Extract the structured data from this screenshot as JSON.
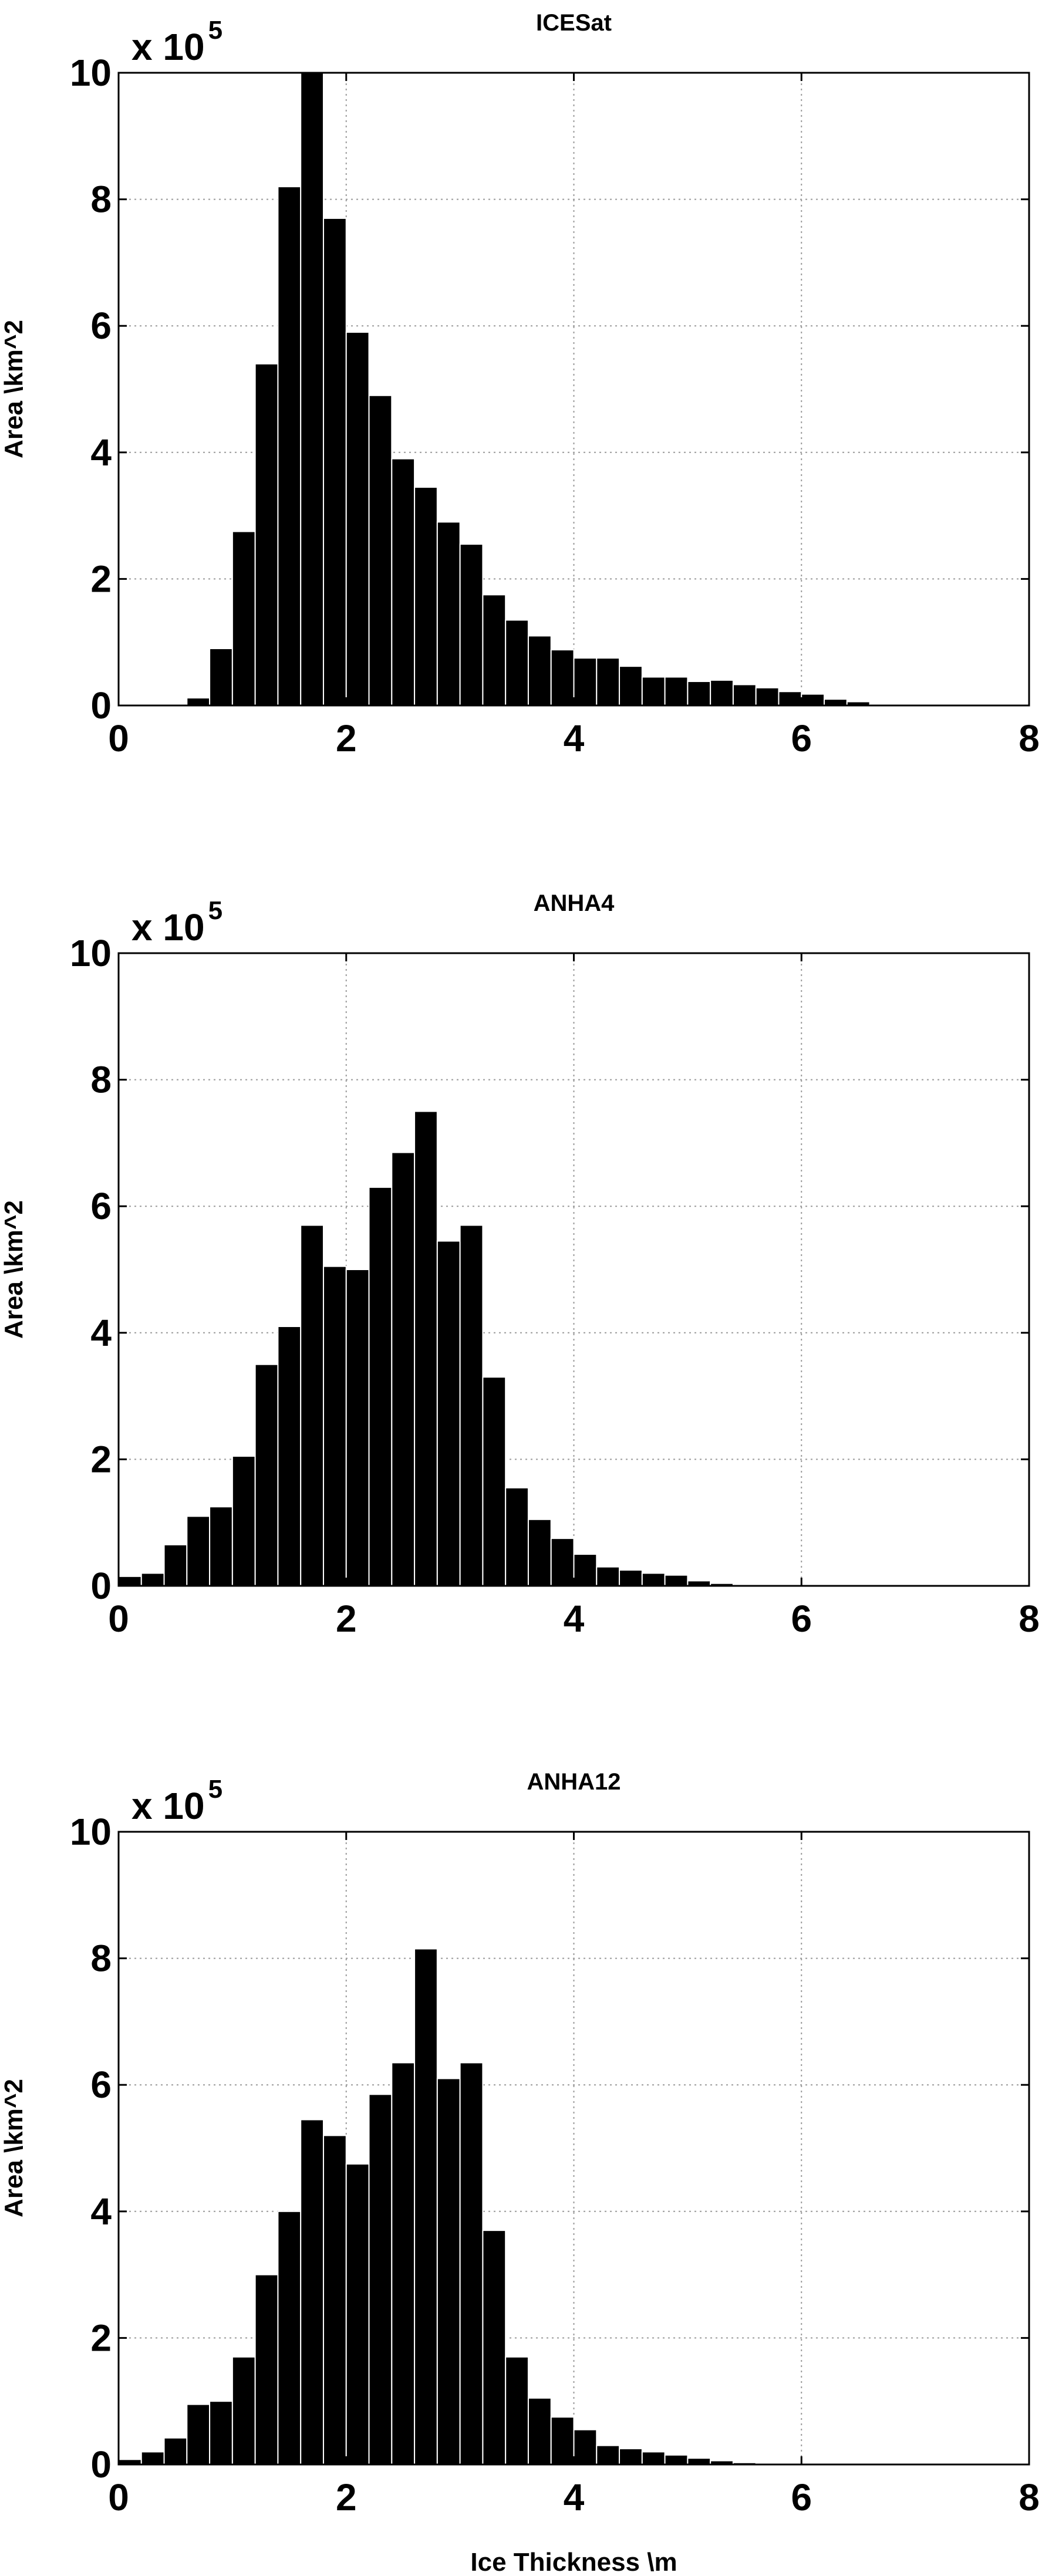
{
  "colors": {
    "bar": "#000000",
    "bar_edge": "#ffffff",
    "grid": "#9a9a9a",
    "background": "#ffffff"
  },
  "chart_data": [
    {
      "type": "bar",
      "title": "ICESat",
      "xlabel": "",
      "ylabel": "Area \\km^2",
      "y_multiplier": {
        "prefix": "x 10",
        "exponent": "5"
      },
      "xlim": [
        0,
        8
      ],
      "ylim": [
        0,
        10
      ],
      "xticks": [
        0,
        2,
        4,
        6,
        8
      ],
      "yticks": [
        0,
        2,
        4,
        6,
        8,
        10
      ],
      "grid": true,
      "bin_width": 0.2,
      "bin_starts": [
        0,
        0.2,
        0.4,
        0.6,
        0.8,
        1.0,
        1.2,
        1.4,
        1.6,
        1.8,
        2.0,
        2.2,
        2.4,
        2.6,
        2.8,
        3.0,
        3.2,
        3.4,
        3.6,
        3.8,
        4.0,
        4.2,
        4.4,
        4.6,
        4.8,
        5.0,
        5.2,
        5.4,
        5.6,
        5.8,
        6.0,
        6.2,
        6.4,
        6.6,
        6.8,
        7.0,
        7.2,
        7.4,
        7.6,
        7.8
      ],
      "values": [
        0,
        0,
        0,
        0.12,
        0.9,
        2.75,
        5.4,
        8.2,
        10.0,
        7.7,
        5.9,
        4.9,
        3.9,
        3.45,
        2.9,
        2.55,
        1.75,
        1.35,
        1.1,
        0.88,
        0.75,
        0.75,
        0.62,
        0.45,
        0.45,
        0.38,
        0.4,
        0.33,
        0.28,
        0.22,
        0.18,
        0.1,
        0.06,
        0.02,
        0,
        0,
        0,
        0,
        0,
        0
      ]
    },
    {
      "type": "bar",
      "title": "ANHA4",
      "xlabel": "",
      "ylabel": "Area \\km^2",
      "y_multiplier": {
        "prefix": "x 10",
        "exponent": "5"
      },
      "xlim": [
        0,
        8
      ],
      "ylim": [
        0,
        10
      ],
      "xticks": [
        0,
        2,
        4,
        6,
        8
      ],
      "yticks": [
        0,
        2,
        4,
        6,
        8,
        10
      ],
      "grid": true,
      "bin_width": 0.2,
      "bin_starts": [
        0,
        0.2,
        0.4,
        0.6,
        0.8,
        1.0,
        1.2,
        1.4,
        1.6,
        1.8,
        2.0,
        2.2,
        2.4,
        2.6,
        2.8,
        3.0,
        3.2,
        3.4,
        3.6,
        3.8,
        4.0,
        4.2,
        4.4,
        4.6,
        4.8,
        5.0,
        5.2,
        5.4,
        5.6,
        5.8,
        6.0,
        6.2,
        6.4,
        6.6,
        6.8,
        7.0,
        7.2,
        7.4,
        7.6,
        7.8
      ],
      "values": [
        0.15,
        0.2,
        0.65,
        1.1,
        1.25,
        2.05,
        3.5,
        4.1,
        5.7,
        5.05,
        5.0,
        6.3,
        6.85,
        7.5,
        5.45,
        5.7,
        3.3,
        1.55,
        1.05,
        0.75,
        0.5,
        0.3,
        0.25,
        0.2,
        0.17,
        0.08,
        0.04,
        0.02,
        0.01,
        0,
        0,
        0,
        0,
        0,
        0,
        0,
        0,
        0,
        0,
        0
      ]
    },
    {
      "type": "bar",
      "title": "ANHA12",
      "xlabel": "Ice Thickness \\m",
      "ylabel": "Area \\km^2",
      "y_multiplier": {
        "prefix": "x 10",
        "exponent": "5"
      },
      "xlim": [
        0,
        8
      ],
      "ylim": [
        0,
        10
      ],
      "xticks": [
        0,
        2,
        4,
        6,
        8
      ],
      "yticks": [
        0,
        2,
        4,
        6,
        8,
        10
      ],
      "grid": true,
      "bin_width": 0.2,
      "bin_starts": [
        0,
        0.2,
        0.4,
        0.6,
        0.8,
        1.0,
        1.2,
        1.4,
        1.6,
        1.8,
        2.0,
        2.2,
        2.4,
        2.6,
        2.8,
        3.0,
        3.2,
        3.4,
        3.6,
        3.8,
        4.0,
        4.2,
        4.4,
        4.6,
        4.8,
        5.0,
        5.2,
        5.4,
        5.6,
        5.8,
        6.0,
        6.2,
        6.4,
        6.6,
        6.8,
        7.0,
        7.2,
        7.4,
        7.6,
        7.8
      ],
      "values": [
        0.08,
        0.2,
        0.42,
        0.95,
        1.0,
        1.7,
        3.0,
        4.0,
        5.45,
        5.2,
        4.75,
        5.85,
        6.35,
        8.15,
        6.1,
        6.35,
        3.7,
        1.7,
        1.05,
        0.75,
        0.55,
        0.3,
        0.25,
        0.2,
        0.15,
        0.1,
        0.06,
        0.03,
        0.01,
        0,
        0,
        0,
        0,
        0,
        0,
        0,
        0,
        0,
        0,
        0
      ]
    }
  ]
}
